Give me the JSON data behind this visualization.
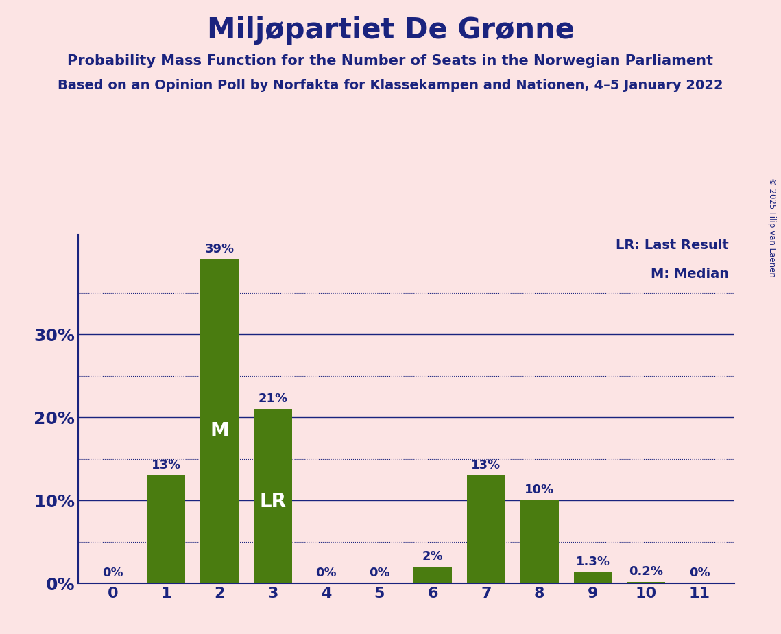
{
  "title": "Miljøpartiet De Grønne",
  "subtitle1": "Probability Mass Function for the Number of Seats in the Norwegian Parliament",
  "subtitle2": "Based on an Opinion Poll by Norfakta for Klassekampen and Nationen, 4–5 January 2022",
  "copyright": "© 2025 Filip van Laenen",
  "categories": [
    0,
    1,
    2,
    3,
    4,
    5,
    6,
    7,
    8,
    9,
    10,
    11
  ],
  "values": [
    0,
    13,
    39,
    21,
    0,
    0,
    2,
    13,
    10,
    1.3,
    0.2,
    0
  ],
  "bar_color": "#4a7c10",
  "background_color": "#fce4e4",
  "title_color": "#1a237e",
  "axis_color": "#1a237e",
  "bar_label_color_outside": "#1a237e",
  "bar_label_color_inside": "#ffffff",
  "ylim": [
    0,
    42
  ],
  "yticks": [
    0,
    10,
    20,
    30
  ],
  "ytick_labels": [
    "0%",
    "10%",
    "20%",
    "30%"
  ],
  "grid_major_color": "#1a237e",
  "grid_minor_color": "#1a237e",
  "median_bar": 2,
  "lr_bar": 3,
  "legend_lr": "LR: Last Result",
  "legend_m": "M: Median",
  "bar_labels": [
    "0%",
    "13%",
    "39%",
    "21%",
    "0%",
    "0%",
    "2%",
    "13%",
    "10%",
    "1.3%",
    "0.2%",
    "0%"
  ]
}
